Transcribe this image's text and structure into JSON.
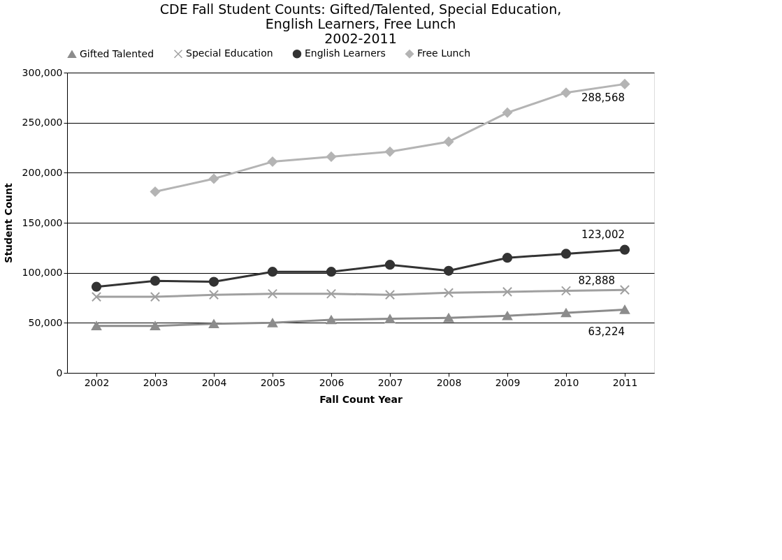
{
  "chart_data": {
    "type": "line",
    "title": [
      "CDE Fall Student Counts: Gifted/Talented, Special Education,",
      "English Learners, Free Lunch",
      "2002-2011"
    ],
    "xlabel": "Fall Count Year",
    "ylabel": "Student Count",
    "categories": [
      "2002",
      "2003",
      "2004",
      "2005",
      "2006",
      "2007",
      "2008",
      "2009",
      "2010",
      "2011"
    ],
    "series": [
      {
        "name": "Gifted Talented",
        "color": "#8c8c8c",
        "marker": "triangle",
        "values": [
          47000,
          47000,
          49000,
          50000,
          53000,
          54000,
          55000,
          57000,
          60000,
          63224
        ],
        "value_labels": [
          null,
          null,
          null,
          null,
          null,
          null,
          null,
          null,
          null,
          "63,224"
        ]
      },
      {
        "name": "Special Education",
        "color": "#a0a0a0",
        "marker": "cross",
        "values": [
          76000,
          76000,
          78000,
          79000,
          79000,
          78000,
          80000,
          81000,
          82000,
          82888
        ],
        "value_labels": [
          null,
          null,
          null,
          null,
          null,
          null,
          null,
          null,
          null,
          "82,888"
        ]
      },
      {
        "name": "English Learners",
        "color": "#333333",
        "marker": "circle",
        "values": [
          86000,
          92000,
          91000,
          101000,
          101000,
          108000,
          102000,
          115000,
          119000,
          123002
        ],
        "value_labels": [
          null,
          null,
          null,
          null,
          null,
          null,
          null,
          null,
          null,
          "123,002"
        ]
      },
      {
        "name": "Free Lunch",
        "color": "#b4b4b4",
        "marker": "diamond",
        "values": [
          null,
          181000,
          194000,
          211000,
          216000,
          221000,
          231000,
          260000,
          280000,
          288568
        ],
        "value_labels": [
          null,
          null,
          null,
          null,
          null,
          null,
          null,
          null,
          null,
          "288,568"
        ]
      }
    ],
    "ylim": [
      0,
      300000
    ],
    "yticks": [
      {
        "value": 0,
        "label": "0"
      },
      {
        "value": 50000,
        "label": "50,000"
      },
      {
        "value": 100000,
        "label": "100,000"
      },
      {
        "value": 150000,
        "label": "150,000"
      },
      {
        "value": 200000,
        "label": "200,000"
      },
      {
        "value": 250000,
        "label": "250,000"
      },
      {
        "value": 300000,
        "label": "300,000"
      }
    ],
    "grid": "y",
    "legend": "top",
    "line_style": "solid"
  }
}
